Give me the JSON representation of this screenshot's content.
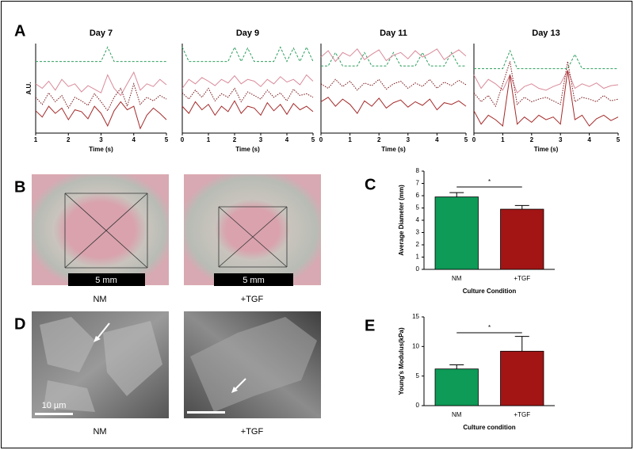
{
  "panel_labels": [
    "A",
    "B",
    "C",
    "D",
    "E"
  ],
  "images": {
    "B": {
      "scale_bar": "5 mm",
      "captions": [
        "NM",
        "+TGF"
      ]
    },
    "D": {
      "scale_bar": "10 µm",
      "captions": [
        "NM",
        "+TGF"
      ]
    }
  },
  "chart_data": [
    {
      "type": "line",
      "title": "Day 7",
      "x_label": "Time (s)",
      "y_label": "A.U.",
      "x": [
        1,
        1.2,
        1.4,
        1.6,
        1.8,
        2,
        2.2,
        2.4,
        2.6,
        2.8,
        3,
        3.2,
        3.4,
        3.6,
        3.8,
        4,
        4.2,
        4.4,
        4.6,
        4.8,
        5
      ],
      "xlim": [
        1,
        5
      ],
      "xticks": [
        1,
        2,
        3,
        4,
        5
      ],
      "ylim": [
        0,
        10
      ],
      "series": [
        {
          "color": "#2e9e5e",
          "style": "dashed",
          "values": [
            8,
            8,
            8,
            8,
            8,
            8,
            8,
            8,
            8,
            8,
            8,
            9.6,
            8,
            8,
            8,
            8,
            8,
            8,
            8,
            8,
            8
          ]
        },
        {
          "color": "#d98a9a",
          "style": "solid",
          "values": [
            5.5,
            5,
            5.8,
            4.8,
            6,
            5.2,
            5.5,
            4.6,
            5.3,
            4.9,
            4.5,
            6.5,
            5,
            4.2,
            5.5,
            6.8,
            4.8,
            5.5,
            5.2,
            6,
            5.4
          ]
        },
        {
          "color": "#7a1518",
          "style": "dotted",
          "values": [
            4,
            3.2,
            4.5,
            3.5,
            4.2,
            2.8,
            4,
            3.6,
            3.1,
            4.4,
            3.5,
            2.5,
            4,
            5,
            3,
            5.5,
            3.2,
            4,
            3.6,
            4.2,
            3.8
          ]
        },
        {
          "color": "#a52a2a",
          "style": "solid",
          "values": [
            2.5,
            1.8,
            3,
            2.2,
            2.8,
            1.5,
            2.6,
            2.4,
            1.6,
            3,
            2.2,
            0.8,
            2.5,
            3.5,
            2.6,
            3,
            0.5,
            2,
            2.8,
            2.2,
            1.5
          ]
        }
      ]
    },
    {
      "type": "line",
      "title": "Day 9",
      "x_label": "Time (s)",
      "x": [
        0,
        0.25,
        0.5,
        0.75,
        1,
        1.25,
        1.5,
        1.75,
        2,
        2.25,
        2.5,
        2.75,
        3,
        3.25,
        3.5,
        3.75,
        4,
        4.25,
        4.5,
        4.75,
        5
      ],
      "xlim": [
        0,
        5
      ],
      "xticks": [
        0,
        1,
        2,
        3,
        4,
        5
      ],
      "ylim": [
        0,
        10
      ],
      "series": [
        {
          "color": "#2e9e5e",
          "style": "dashed",
          "values": [
            9.6,
            8,
            8,
            8,
            8,
            8,
            8,
            8,
            9.6,
            8,
            9.5,
            8,
            8,
            8,
            8,
            9.6,
            8,
            9.5,
            8,
            9.6,
            8
          ]
        },
        {
          "color": "#d98a9a",
          "style": "solid",
          "values": [
            5,
            6,
            5.5,
            6.2,
            5.8,
            5.3,
            6,
            5.6,
            6.4,
            5.5,
            6,
            5.8,
            5.2,
            6,
            5.5,
            6.3,
            5.7,
            6,
            5.4,
            6.5,
            5.8
          ]
        },
        {
          "color": "#7a1518",
          "style": "dotted",
          "values": [
            4.5,
            3.8,
            4.8,
            4,
            5,
            3.6,
            4.4,
            4,
            5,
            3.5,
            4.6,
            4.2,
            3.8,
            4.8,
            4,
            4.5,
            3.6,
            4.9,
            4.2,
            4.4,
            4
          ]
        },
        {
          "color": "#a52a2a",
          "style": "solid",
          "values": [
            3,
            2.2,
            3.5,
            2.6,
            3.2,
            2,
            3,
            2.4,
            3.6,
            2.2,
            3,
            2.8,
            2,
            3.4,
            2.5,
            3.2,
            2.1,
            3.3,
            2.6,
            3,
            2.4
          ]
        }
      ]
    },
    {
      "type": "line",
      "title": "Day 11",
      "x_label": "Time (s)",
      "x": [
        0,
        0.25,
        0.5,
        0.75,
        1,
        1.25,
        1.5,
        1.75,
        2,
        2.25,
        2.5,
        2.75,
        3,
        3.25,
        3.5,
        3.75,
        4,
        4.25,
        4.5,
        4.75,
        5
      ],
      "xlim": [
        0,
        5
      ],
      "xticks": [
        0,
        1,
        2,
        3,
        4,
        5
      ],
      "ylim": [
        0,
        10
      ],
      "series": [
        {
          "color": "#2e9e5e",
          "style": "dashed",
          "values": [
            7.5,
            7.5,
            9,
            7.5,
            7.5,
            7.5,
            9,
            7.5,
            7.5,
            7.5,
            9,
            7.5,
            7.5,
            7.5,
            9,
            7.5,
            7.5,
            7.5,
            9,
            7.5,
            7.5
          ]
        },
        {
          "color": "#d98a9a",
          "style": "solid",
          "values": [
            8.5,
            9.2,
            8,
            9,
            8.6,
            9.4,
            8.2,
            8.8,
            9.3,
            8.1,
            8.7,
            9,
            8.3,
            9.2,
            8.5,
            8.9,
            9.4,
            8.2,
            8.8,
            9.3,
            8.6
          ]
        },
        {
          "color": "#7a1518",
          "style": "dotted",
          "values": [
            5.5,
            5,
            6,
            5.2,
            5.8,
            4.8,
            5.6,
            5.3,
            6,
            4.9,
            5.5,
            5.8,
            5,
            5.6,
            5.2,
            6,
            5,
            5.7,
            5.3,
            5.9,
            5.4
          ]
        },
        {
          "color": "#a52a2a",
          "style": "solid",
          "values": [
            3.5,
            4,
            3,
            3.8,
            3.2,
            2.2,
            3.6,
            3,
            3.9,
            2.8,
            3.4,
            3.7,
            2.9,
            3.5,
            3.1,
            3.8,
            2.6,
            3.4,
            3.2,
            3.6,
            3
          ]
        }
      ]
    },
    {
      "type": "line",
      "title": "Day 13",
      "x_label": "Time (s)",
      "x": [
        0,
        0.25,
        0.5,
        0.75,
        1,
        1.25,
        1.5,
        1.75,
        2,
        2.25,
        2.5,
        2.75,
        3,
        3.25,
        3.5,
        3.75,
        4,
        4.25,
        4.5,
        4.75,
        5
      ],
      "xlim": [
        0,
        5
      ],
      "xticks": [
        0,
        1,
        2,
        3,
        4,
        5
      ],
      "ylim": [
        0,
        10
      ],
      "series": [
        {
          "color": "#2e9e5e",
          "style": "dashed",
          "values": [
            7.2,
            7.2,
            7.2,
            7.2,
            7.2,
            9.2,
            7.2,
            7.2,
            7.2,
            7.2,
            7.2,
            7.2,
            7.2,
            7.2,
            8.8,
            7.2,
            7.2,
            7.2,
            7.2,
            7.2,
            7.2
          ]
        },
        {
          "color": "#d98a9a",
          "style": "solid",
          "values": [
            6.5,
            5,
            6,
            5.5,
            4.8,
            6.5,
            4.5,
            5.2,
            5.5,
            5,
            4.8,
            5.2,
            5.5,
            7,
            5,
            5.5,
            5.2,
            5.6,
            5,
            5.3,
            5.4
          ]
        },
        {
          "color": "#7a1518",
          "style": "dotted",
          "values": [
            4.5,
            3.5,
            4.2,
            3,
            5.5,
            8,
            3.2,
            4,
            3.5,
            3.8,
            4,
            3.6,
            3.2,
            8,
            3.5,
            4,
            3.8,
            3.5,
            4.2,
            3.6,
            3.8
          ]
        },
        {
          "color": "#a52a2a",
          "style": "solid",
          "values": [
            2.5,
            1,
            2,
            1.5,
            0.8,
            6.5,
            1,
            1.8,
            1.2,
            2,
            1.5,
            1.8,
            1,
            7,
            1.5,
            2,
            0.8,
            1.6,
            2,
            1.4,
            1.8
          ]
        }
      ]
    },
    {
      "type": "bar",
      "x_label": "Culture Condition",
      "y_label": "Average Diameter (mm)",
      "categories": [
        "NM",
        "+TGF"
      ],
      "values": [
        5.9,
        4.9
      ],
      "errors": [
        0.35,
        0.3
      ],
      "colors": [
        "#0e9a57",
        "#a31515"
      ],
      "ylim": [
        0,
        8
      ],
      "yticks": [
        0,
        1,
        2,
        3,
        4,
        5,
        6,
        7,
        8
      ],
      "annotation": "*"
    },
    {
      "type": "bar",
      "x_label": "Culture condition",
      "y_label": "Young's Modulus(kPa)",
      "categories": [
        "NM",
        "+TGF"
      ],
      "values": [
        6.2,
        9.2
      ],
      "errors": [
        0.7,
        2.5
      ],
      "colors": [
        "#0e9a57",
        "#a31515"
      ],
      "ylim": [
        0,
        15
      ],
      "yticks": [
        0,
        5,
        10,
        15
      ],
      "annotation": "*"
    }
  ]
}
